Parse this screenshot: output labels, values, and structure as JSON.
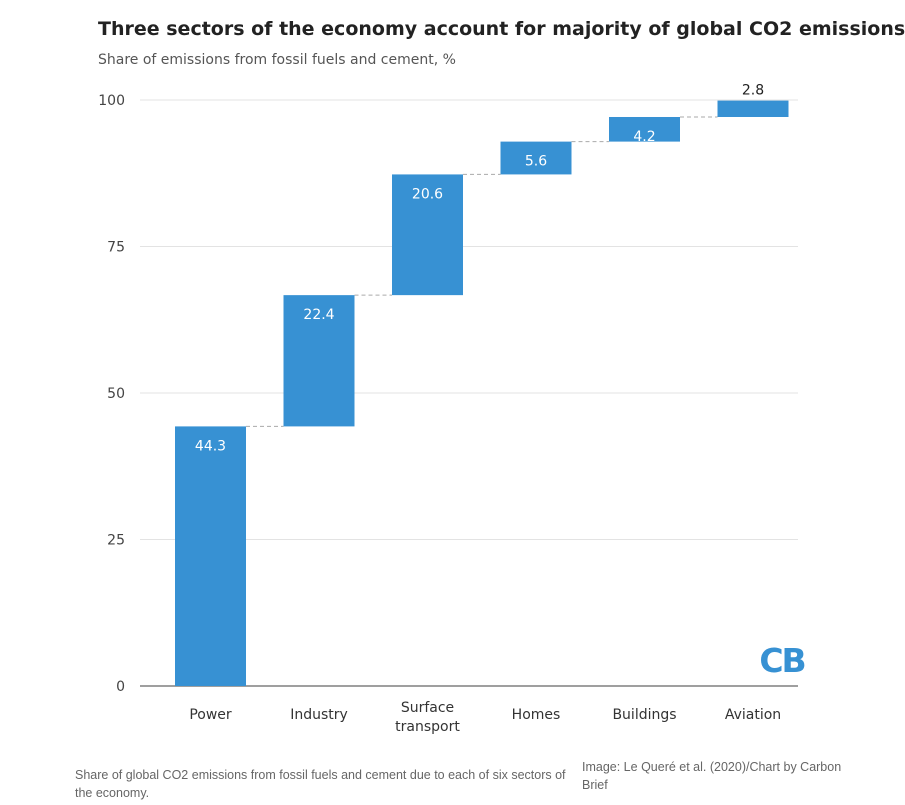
{
  "title": "Three sectors of the economy account for majority of global CO2 emissions",
  "subtitle": "Share of emissions from fossil fuels and cement, %",
  "chart_data": {
    "type": "bar",
    "variant": "waterfall",
    "categories": [
      "Power",
      "Industry",
      "Surface transport",
      "Homes",
      "Buildings",
      "Aviation"
    ],
    "values": [
      44.3,
      22.4,
      20.6,
      5.6,
      4.2,
      2.8
    ],
    "data_labels": [
      "44.3",
      "22.4",
      "20.6",
      "5.6",
      "4.2",
      "2.8"
    ],
    "yticks": [
      0,
      25,
      50,
      75,
      100
    ],
    "ylim": [
      0,
      100
    ],
    "grid": true,
    "bar_color": "#3791d3",
    "connector_lines": "dashed"
  },
  "logo_text": "CB",
  "logo_color": "#3791d3",
  "caption": "Share of global CO2 emissions from fossil fuels and cement due to each of six sectors of the economy.",
  "credit": "Image: Le Queré et al. (2020)/Chart by Carbon Brief"
}
